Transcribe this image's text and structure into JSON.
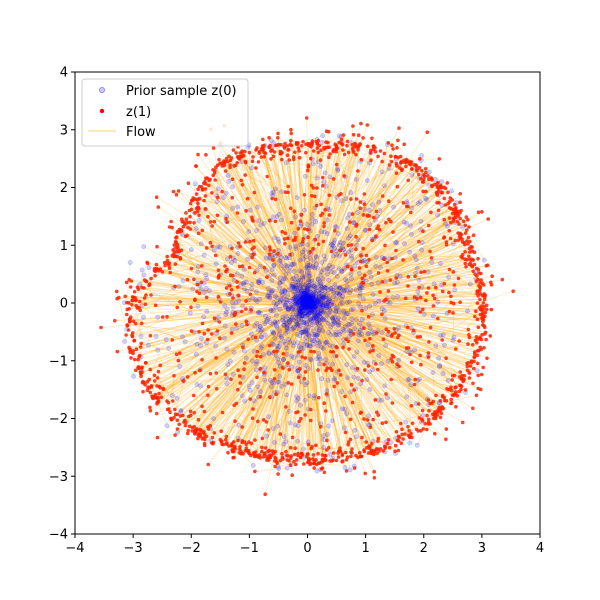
{
  "chart_data": {
    "type": "scatter",
    "title": "",
    "xlabel": "",
    "ylabel": "",
    "xlim": [
      -4,
      4
    ],
    "ylim": [
      -4,
      4
    ],
    "xticks": [
      -4,
      -3,
      -2,
      -1,
      0,
      1,
      2,
      3,
      4
    ],
    "yticks": [
      -4,
      -3,
      -2,
      -1,
      0,
      1,
      2,
      3,
      4
    ],
    "grid": false,
    "legend_position": "top-left",
    "colors": {
      "prior": "#0000ff",
      "z1": "#ff0000",
      "flow": "#ffa500",
      "axes": "#000000"
    },
    "legend": [
      {
        "label": "Prior sample z(0)",
        "marker": "circle-hollow",
        "color": "#0000ff"
      },
      {
        "label": "z(1)",
        "marker": "circle-filled",
        "color": "#ff0000"
      },
      {
        "label": "Flow",
        "marker": "line",
        "color": "#ffa500"
      }
    ],
    "series_description": "Prior samples z(0) concentrated near origin and scattered outward; flow lines connect each z(0) to z(1); z(1) forms a ring of radius about 2.5-3.4 with a scalloped boundary",
    "ring_profile": [
      {
        "angle_deg": 0,
        "r": 3.1
      },
      {
        "angle_deg": 20,
        "r": 3.0
      },
      {
        "angle_deg": 40,
        "r": 3.1
      },
      {
        "angle_deg": 60,
        "r": 3.0
      },
      {
        "angle_deg": 80,
        "r": 2.85
      },
      {
        "angle_deg": 100,
        "r": 2.8
      },
      {
        "angle_deg": 120,
        "r": 2.9
      },
      {
        "angle_deg": 140,
        "r": 2.65
      },
      {
        "angle_deg": 160,
        "r": 2.5
      },
      {
        "angle_deg": 180,
        "r": 3.1
      },
      {
        "angle_deg": 200,
        "r": 3.2
      },
      {
        "angle_deg": 220,
        "r": 3.1
      },
      {
        "angle_deg": 240,
        "r": 2.9
      },
      {
        "angle_deg": 260,
        "r": 2.8
      },
      {
        "angle_deg": 280,
        "r": 2.8
      },
      {
        "angle_deg": 300,
        "r": 2.9
      },
      {
        "angle_deg": 320,
        "r": 3.0
      },
      {
        "angle_deg": 340,
        "r": 3.1
      }
    ],
    "n_points": 1600
  }
}
